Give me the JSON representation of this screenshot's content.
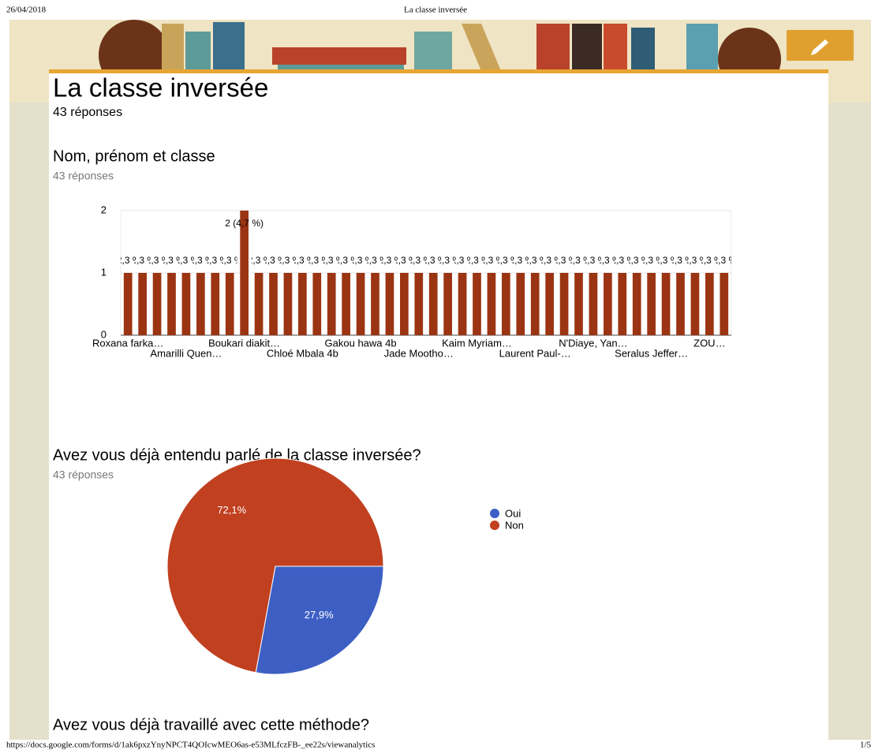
{
  "print_header": {
    "date": "26/04/2018",
    "title": "La classe inversée"
  },
  "form": {
    "title": "La classe inversée",
    "responses": "43 réponses"
  },
  "questions": [
    {
      "title": "Nom, prénom et classe",
      "responses": "43 réponses",
      "chart_data": {
        "type": "bar",
        "categories": [
          "Roxana farka…",
          null,
          null,
          null,
          "Amarilli Quen…",
          null,
          null,
          null,
          "Boukari diakit…",
          null,
          null,
          null,
          "Chloé Mbala 4b",
          null,
          null,
          null,
          "Gakou hawa 4b",
          null,
          null,
          null,
          "Jade Mootho…",
          null,
          null,
          null,
          "Kaim Myriam…",
          null,
          null,
          null,
          "Laurent Paul-…",
          null,
          null,
          null,
          "N'Diaye, Yan…",
          null,
          null,
          null,
          "Seralus Jeffer…",
          null,
          null,
          null,
          "ZOU…",
          null
        ],
        "values": [
          1,
          1,
          1,
          1,
          1,
          1,
          1,
          1,
          2,
          1,
          1,
          1,
          1,
          1,
          1,
          1,
          1,
          1,
          1,
          1,
          1,
          1,
          1,
          1,
          1,
          1,
          1,
          1,
          1,
          1,
          1,
          1,
          1,
          1,
          1,
          1,
          1,
          1,
          1,
          1,
          1,
          1
        ],
        "value_labels": [
          "1 (2,3 %)",
          "1 (2,3 %)",
          "1 (2,3 %)",
          "1 (2,3 %)",
          "1 (2,3 %)",
          "1 (2,3 %)",
          "1 (2,3 %)",
          "1 (2,3 %)",
          "2 (4,7 %)",
          "1 (2,3 %)",
          "1 (2,3 %)",
          "1 (2,3 %)",
          "1 (2,3 %)",
          "1 (2,3 %)",
          "1 (2,3 %)",
          "1 (2,3 %)",
          "1 (2,3 %)",
          "1 (2,3 %)",
          "1 (2,3 %)",
          "1 (2,3 %)",
          "1 (2,3 %)",
          "1 (2,3 %)",
          "1 (2,3 %)",
          "1 (2,3 %)",
          "1 (2,3 %)",
          "1 (2,3 %)",
          "1 (2,3 %)",
          "1 (2,3 %)",
          "1 (2,3 %)",
          "1 (2,3 %)",
          "1 (2,3 %)",
          "1 (2,3 %)",
          "1 (2,3 %)",
          "1 (2,3 %)",
          "1 (2,3 %)",
          "1 (2,3 %)",
          "1 (2,3 %)",
          "1 (2,3 %)",
          "1 (2,3 %)",
          "1 (2,3 %)",
          "1 (2,3 %)",
          "1 (2,3 %)"
        ],
        "color": "#9b3412",
        "ylim": [
          0,
          2
        ],
        "yticks": [
          0,
          1,
          2
        ],
        "grid": true
      }
    },
    {
      "title": "Avez vous déjà entendu parlé de la classe inversée?",
      "responses": "43 réponses",
      "chart_data": {
        "type": "pie",
        "categories": [
          "Oui",
          "Non"
        ],
        "values": [
          27.9,
          72.1
        ],
        "value_labels": [
          "27,9%",
          "72,1%"
        ],
        "colors": [
          "#3d5fc4",
          "#c1401f"
        ],
        "legend": "right"
      }
    },
    {
      "title": "Avez vous déjà travaillé avec cette méthode?"
    }
  ],
  "print_footer": {
    "url": "https://docs.google.com/forms/d/1ak6pxzYnyNPCT4QOIcwMEO6as-e53MLfczFB-_ee22s/viewanalytics",
    "page": "1/5"
  }
}
